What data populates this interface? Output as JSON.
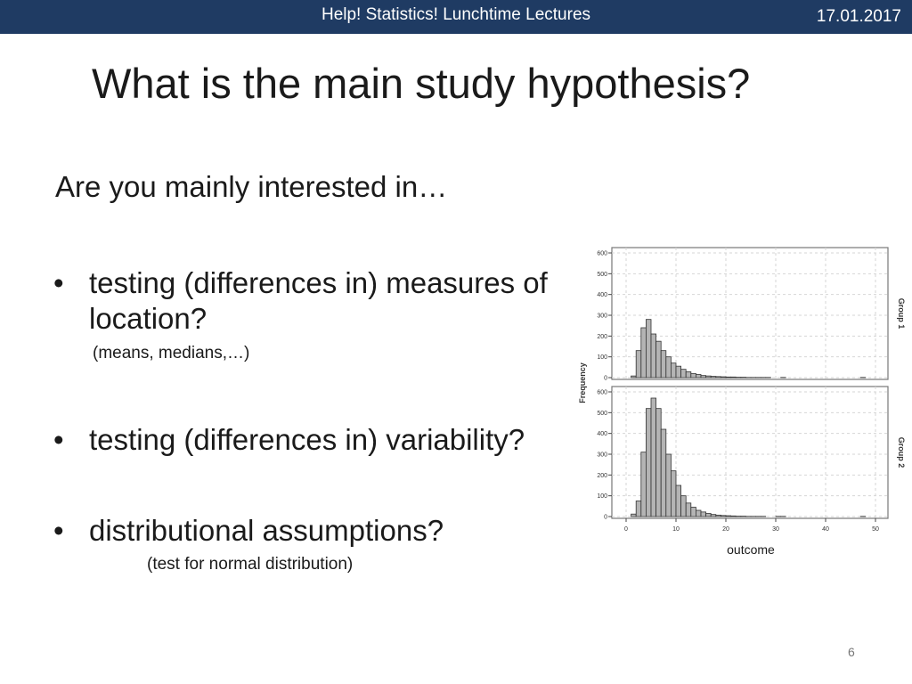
{
  "header": {
    "course": "Help! Statistics! Lunchtime Lectures",
    "date": "17.01.2017"
  },
  "slide": {
    "title": "What is the main study hypothesis?",
    "intro": "Are you mainly interested in…",
    "bullets": [
      {
        "text_line1": "testing (differences in) measures of",
        "text_line2": "location?",
        "note": "(means, medians,…)"
      },
      {
        "text_line1": "testing (differences in) variability?"
      },
      {
        "text_line1": "distributional assumptions?",
        "note": "(test for normal distribution)"
      }
    ],
    "page_number": "6"
  },
  "colors": {
    "header_bg": "#1f3b63",
    "bar_fill": "#b4b4b4"
  },
  "chart_data": {
    "type": "bar",
    "subtype": "histogram",
    "ylabel": "Frequency",
    "xlabel": "outcome",
    "x_ticks": [
      "0",
      "10",
      "20",
      "30",
      "40",
      "50"
    ],
    "y_ticks": [
      "0",
      "100",
      "200",
      "300",
      "400",
      "500",
      "600"
    ],
    "xlim": [
      0,
      50
    ],
    "ylim": [
      0,
      600
    ],
    "bin_width": 1,
    "grid": true,
    "panels": [
      {
        "name": "Group 1",
        "bin_starts": [
          0,
          1,
          2,
          3,
          4,
          5,
          6,
          7,
          8,
          9,
          10,
          11,
          12,
          13,
          14,
          15,
          16,
          17,
          18,
          19,
          20,
          21,
          22,
          23,
          24,
          25,
          26,
          27,
          28,
          29,
          30,
          31,
          32,
          33,
          34,
          35,
          36,
          37,
          38,
          39,
          40,
          41,
          42,
          43,
          44,
          45,
          46,
          47,
          48,
          49
        ],
        "values": [
          0,
          8,
          130,
          240,
          280,
          210,
          175,
          130,
          100,
          70,
          55,
          40,
          28,
          20,
          15,
          10,
          8,
          6,
          5,
          4,
          3,
          3,
          2,
          2,
          1,
          1,
          1,
          1,
          1,
          0,
          0,
          1,
          0,
          0,
          0,
          0,
          0,
          0,
          0,
          0,
          0,
          0,
          0,
          0,
          0,
          0,
          0,
          1,
          0,
          0
        ]
      },
      {
        "name": "Group 2",
        "bin_starts": [
          0,
          1,
          2,
          3,
          4,
          5,
          6,
          7,
          8,
          9,
          10,
          11,
          12,
          13,
          14,
          15,
          16,
          17,
          18,
          19,
          20,
          21,
          22,
          23,
          24,
          25,
          26,
          27,
          28,
          29,
          30,
          31,
          32,
          33,
          34,
          35,
          36,
          37,
          38,
          39,
          40,
          41,
          42,
          43,
          44,
          45,
          46,
          47,
          48,
          49
        ],
        "values": [
          0,
          12,
          75,
          310,
          520,
          570,
          520,
          420,
          300,
          220,
          150,
          100,
          65,
          45,
          30,
          22,
          15,
          10,
          7,
          5,
          4,
          3,
          2,
          2,
          1,
          1,
          1,
          1,
          0,
          0,
          1,
          1,
          0,
          0,
          0,
          0,
          0,
          0,
          0,
          0,
          0,
          0,
          0,
          0,
          0,
          0,
          0,
          1,
          0,
          0
        ]
      }
    ]
  }
}
